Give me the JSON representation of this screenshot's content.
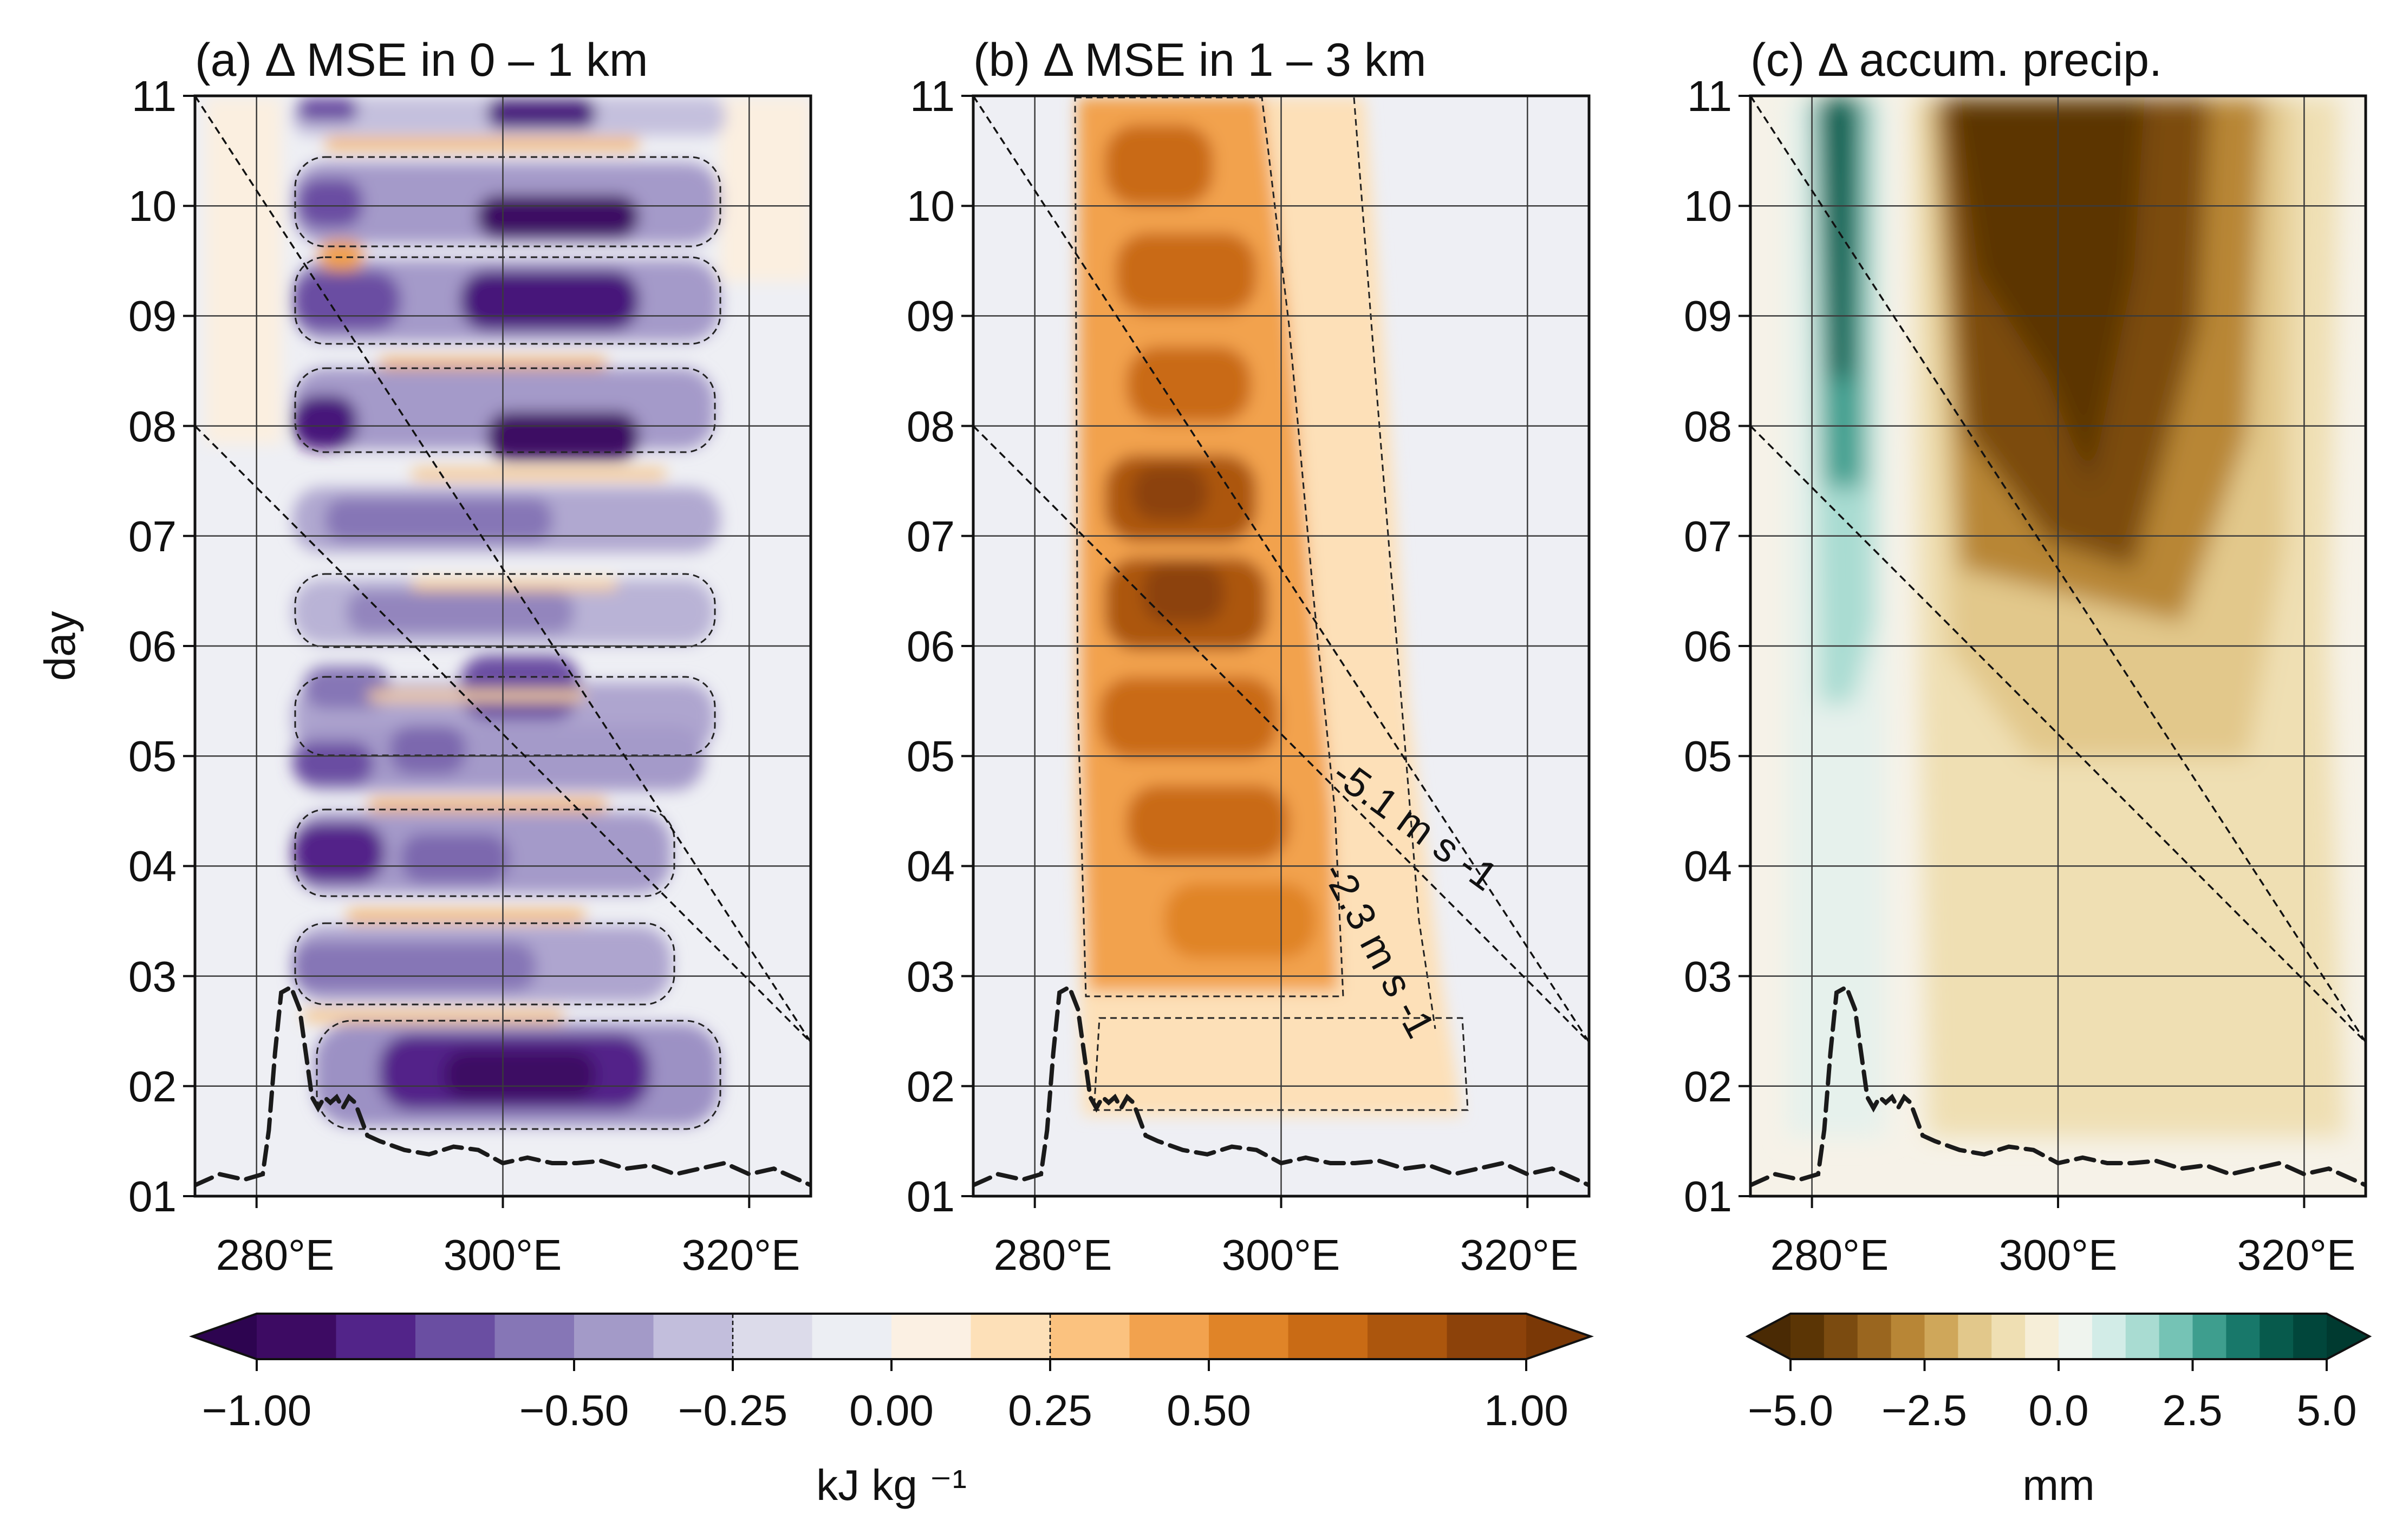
{
  "chart_data": [
    {
      "type": "heatmap",
      "panel": "a",
      "title": "(a) Δ MSE in 0 – 1 km",
      "xlabel": "",
      "ylabel": "day",
      "xlim": [
        275,
        325
      ],
      "ylim": [
        1,
        11
      ],
      "x_ticks": [
        280,
        300,
        320
      ],
      "x_tick_labels": [
        "280°E",
        "300°E",
        "320°E"
      ],
      "y_ticks": [
        1,
        2,
        3,
        4,
        5,
        6,
        7,
        8,
        9,
        10,
        11
      ],
      "y_tick_labels": [
        "01",
        "02",
        "03",
        "04",
        "05",
        "06",
        "07",
        "08",
        "09",
        "10",
        "11"
      ],
      "grid": true,
      "field_summary": "negative anomalies (purple) in horizontal bands between about 283°E and 318°E, strongest near 300°E around days 02, 08, 09, 10 and 11; thin positive (orange) streaks between the bands",
      "reference_lines": [
        {
          "x": [
            275,
            325
          ],
          "y": [
            11,
            2.4
          ]
        },
        {
          "x": [
            275,
            325
          ],
          "y": [
            8,
            2.4
          ]
        }
      ],
      "topography_profile": {
        "x": [
          275,
          277,
          279,
          280.5,
          281,
          281.5,
          282,
          282.8,
          283.5,
          284,
          284.5,
          285,
          285.5,
          286,
          286.5,
          287,
          287.5,
          288,
          289,
          290,
          292,
          294,
          296,
          298,
          300,
          302,
          304,
          306,
          308,
          310,
          312,
          314,
          316,
          318,
          320,
          322,
          325
        ],
        "y": [
          1.1,
          1.2,
          1.15,
          1.2,
          1.6,
          2.3,
          2.85,
          2.9,
          2.7,
          2.3,
          1.9,
          1.8,
          1.9,
          1.85,
          1.9,
          1.8,
          1.9,
          1.85,
          1.55,
          1.5,
          1.42,
          1.38,
          1.45,
          1.42,
          1.3,
          1.35,
          1.3,
          1.3,
          1.32,
          1.25,
          1.28,
          1.2,
          1.25,
          1.3,
          1.2,
          1.25,
          1.1
        ]
      }
    },
    {
      "type": "heatmap",
      "panel": "b",
      "title": "(b) Δ MSE in 1 – 3 km",
      "xlabel": "",
      "ylabel": "",
      "xlim": [
        275,
        325
      ],
      "ylim": [
        1,
        11
      ],
      "x_ticks": [
        280,
        300,
        320
      ],
      "x_tick_labels": [
        "280°E",
        "300°E",
        "320°E"
      ],
      "y_ticks": [
        1,
        2,
        3,
        4,
        5,
        6,
        7,
        8,
        9,
        10,
        11
      ],
      "y_tick_labels": [
        "01",
        "02",
        "03",
        "04",
        "05",
        "06",
        "07",
        "08",
        "09",
        "10",
        "11"
      ],
      "grid": true,
      "field_summary": "positive anomalies (orange-brown) between about 284°E and 302°E from day 02 to day 11, strongest near 285–297°E and shifting eastward at earlier days",
      "reference_lines": [
        {
          "x": [
            275,
            325
          ],
          "y": [
            11,
            2.4
          ],
          "label": "-2.3 m s -1"
        },
        {
          "x": [
            275,
            325
          ],
          "y": [
            8,
            2.4
          ],
          "label": "-5.1 m s -1"
        }
      ],
      "topography_profile": {
        "x": [
          275,
          277,
          279,
          280.5,
          281,
          281.5,
          282,
          282.8,
          283.5,
          284,
          284.5,
          285,
          285.5,
          286,
          286.5,
          287,
          287.5,
          288,
          289,
          290,
          292,
          294,
          296,
          298,
          300,
          302,
          304,
          306,
          308,
          310,
          312,
          314,
          316,
          318,
          320,
          322,
          325
        ],
        "y": [
          1.1,
          1.2,
          1.15,
          1.2,
          1.6,
          2.3,
          2.85,
          2.9,
          2.7,
          2.3,
          1.9,
          1.8,
          1.9,
          1.85,
          1.9,
          1.8,
          1.9,
          1.85,
          1.55,
          1.5,
          1.42,
          1.38,
          1.45,
          1.42,
          1.3,
          1.35,
          1.3,
          1.3,
          1.32,
          1.25,
          1.28,
          1.2,
          1.25,
          1.3,
          1.2,
          1.25,
          1.1
        ]
      }
    },
    {
      "type": "heatmap",
      "panel": "c",
      "title": "(c) Δ accum. precip.",
      "xlabel": "",
      "ylabel": "",
      "xlim": [
        275,
        325
      ],
      "ylim": [
        1,
        11
      ],
      "x_ticks": [
        280,
        300,
        320
      ],
      "x_tick_labels": [
        "280°E",
        "300°E",
        "320°E"
      ],
      "y_ticks": [
        1,
        2,
        3,
        4,
        5,
        6,
        7,
        8,
        9,
        10,
        11
      ],
      "y_tick_labels": [
        "01",
        "02",
        "03",
        "04",
        "05",
        "06",
        "07",
        "08",
        "09",
        "10",
        "11"
      ],
      "grid": true,
      "field_summary": "positive precipitation anomalies (teal) in a narrow strip near 280–284°E growing with time; large negative anomalies (brown) between about 290°E and 318°E, deepening after day 06 and strongest near 291–305°E by day 11",
      "reference_lines": [
        {
          "x": [
            275,
            325
          ],
          "y": [
            11,
            2.4
          ]
        },
        {
          "x": [
            275,
            325
          ],
          "y": [
            8,
            2.4
          ]
        }
      ],
      "topography_profile": {
        "x": [
          275,
          277,
          279,
          280.5,
          281,
          281.5,
          282,
          282.8,
          283.5,
          284,
          284.5,
          285,
          285.5,
          286,
          286.5,
          287,
          287.5,
          288,
          289,
          290,
          292,
          294,
          296,
          298,
          300,
          302,
          304,
          306,
          308,
          310,
          312,
          314,
          316,
          318,
          320,
          322,
          325
        ],
        "y": [
          1.1,
          1.2,
          1.15,
          1.2,
          1.6,
          2.3,
          2.85,
          2.9,
          2.7,
          2.3,
          1.9,
          1.8,
          1.9,
          1.85,
          1.9,
          1.8,
          1.9,
          1.85,
          1.55,
          1.5,
          1.42,
          1.38,
          1.45,
          1.42,
          1.3,
          1.35,
          1.3,
          1.3,
          1.32,
          1.25,
          1.28,
          1.2,
          1.25,
          1.3,
          1.2,
          1.25,
          1.1
        ]
      }
    }
  ],
  "colorbars": {
    "mse": {
      "label": "kJ kg ⁻¹",
      "range": [
        -1,
        1
      ],
      "ticks": [
        -1,
        -0.5,
        -0.25,
        0,
        0.25,
        0.5,
        1
      ],
      "tick_labels": [
        "−1.00",
        "−0.50",
        "−0.25",
        "0.00",
        "0.25",
        "0.50",
        "1.00"
      ],
      "contour_marks": [
        -0.25,
        0.25
      ],
      "extend": "both",
      "colors": [
        "#3d0b63",
        "#522489",
        "#6a4ea2",
        "#8676b6",
        "#a39ac8",
        "#c2bedc",
        "#dcdbea",
        "#eceef3",
        "#fbf0e3",
        "#fde0b8",
        "#fbc27f",
        "#f2a24e",
        "#e08428",
        "#c96b15",
        "#ac560d",
        "#8c420a"
      ],
      "under_color": "#2d0450",
      "over_color": "#7a3806"
    },
    "precip": {
      "label": "mm",
      "range": [
        -5,
        5
      ],
      "ticks": [
        -5,
        -2.5,
        0,
        2.5,
        5
      ],
      "tick_labels": [
        "−5.0",
        "−2.5",
        "0.0",
        "2.5",
        "5.0"
      ],
      "extend": "both",
      "colors": [
        "#5b3505",
        "#7b4b10",
        "#9a661f",
        "#b88636",
        "#cfa75a",
        "#e2c88b",
        "#efdfb3",
        "#f6eed8",
        "#eff4ee",
        "#d2ece7",
        "#a9dcd2",
        "#75c3b5",
        "#3e9e8e",
        "#18786a",
        "#075a4c",
        "#01463b"
      ],
      "under_color": "#4a2a04",
      "over_color": "#003a30"
    }
  }
}
